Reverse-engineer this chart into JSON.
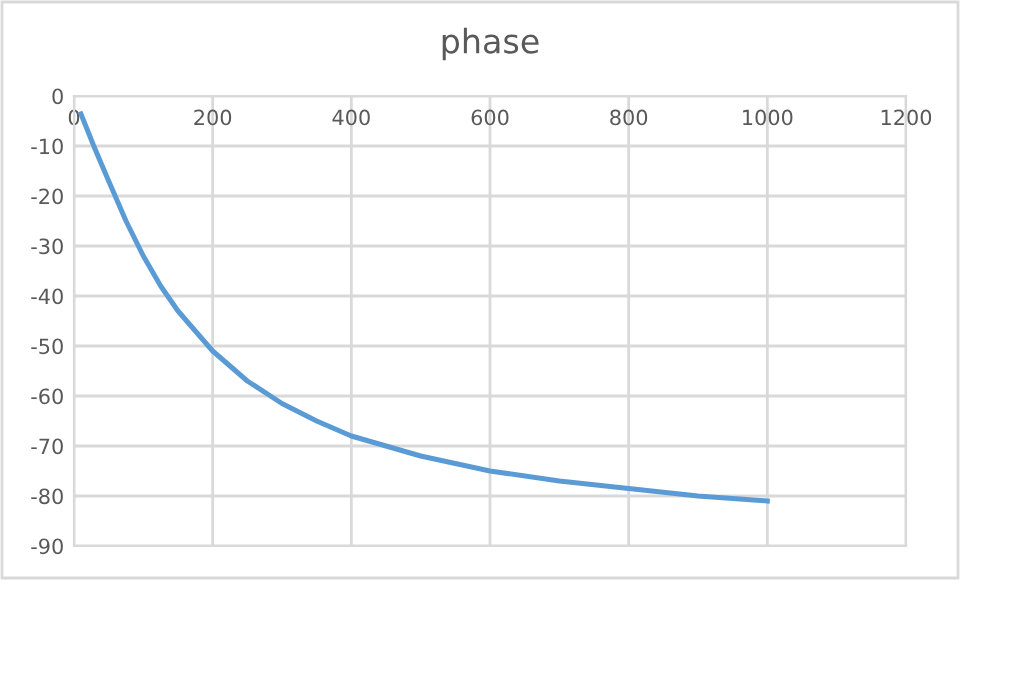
{
  "chart_data": {
    "type": "line",
    "title": "phase",
    "x": [
      10,
      30,
      50,
      75,
      100,
      125,
      150,
      200,
      250,
      300,
      350,
      400,
      500,
      600,
      700,
      800,
      900,
      1000
    ],
    "series": [
      {
        "color": "#5b9bd5",
        "values": [
          -3.6,
          -10.5,
          -17,
          -25,
          -32,
          -38,
          -43,
          -51,
          -57,
          -61.5,
          -65,
          -68,
          -72,
          -75,
          -77,
          -78.5,
          -80,
          -81
        ]
      }
    ],
    "xlim": [
      0,
      1200
    ],
    "xticks": [
      0,
      200,
      400,
      600,
      800,
      1000,
      1200
    ],
    "ylim": [
      -90,
      0
    ],
    "yticks": [
      0,
      -10,
      -20,
      -30,
      -40,
      -50,
      -60,
      -70,
      -80,
      -90
    ],
    "grid": true,
    "legend": false,
    "marker": "none",
    "line_style": "solid"
  }
}
